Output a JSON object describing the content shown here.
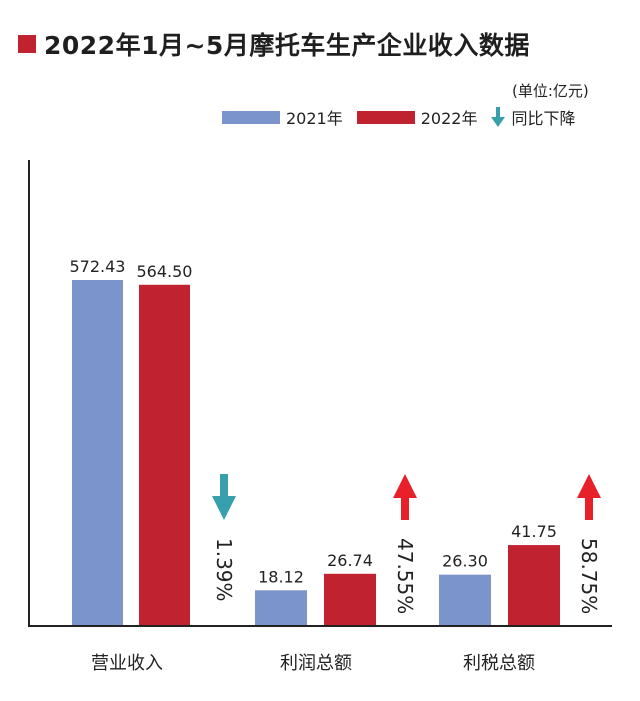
{
  "title": "2022年1月~5月摩托车生产企业收入数据",
  "unit": "(单位:亿元)",
  "legend": {
    "series_2021": "2021年",
    "series_2022": "2022年",
    "decline": "同比下降"
  },
  "colors": {
    "series_2021": "#7b94cc",
    "series_2022": "#c0222f",
    "arrow_down": "#3a9fac",
    "arrow_up": "#e8202a",
    "title_square": "#c0222f"
  },
  "chart_data": {
    "type": "bar",
    "title": "2022年1月~5月摩托车生产企业收入数据",
    "categories": [
      "营业收入",
      "利润总额",
      "利税总额"
    ],
    "series": [
      {
        "name": "2021年",
        "values": [
          572.43,
          18.12,
          26.3
        ]
      },
      {
        "name": "2022年",
        "values": [
          564.5,
          26.74,
          41.75
        ]
      }
    ],
    "value_labels": [
      [
        "572.43",
        "18.12",
        "26.30"
      ],
      [
        "564.50",
        "26.74",
        "41.75"
      ]
    ],
    "changes": [
      {
        "label": "1.39%",
        "direction": "down"
      },
      {
        "label": "47.55%",
        "direction": "up"
      },
      {
        "label": "58.75%",
        "direction": "up"
      }
    ],
    "legend_position": "top-right",
    "grid": false
  }
}
